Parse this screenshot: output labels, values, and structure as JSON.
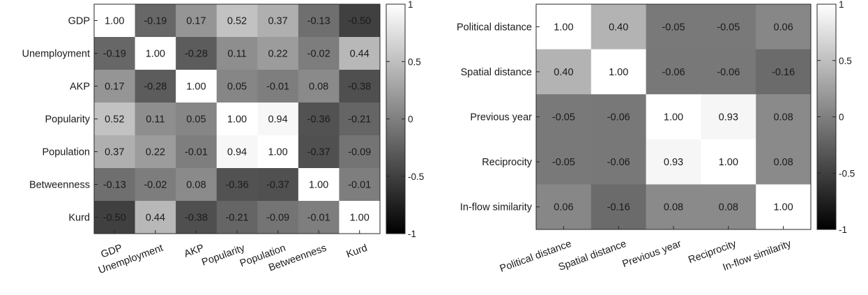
{
  "chart_data": [
    {
      "type": "heatmap",
      "title": "",
      "xlabel": "",
      "ylabel": "",
      "labels": [
        "GDP",
        "Unemployment",
        "AKP",
        "Popularity",
        "Population",
        "Betweenness",
        "Kurd"
      ],
      "value_labels": [
        [
          "1.00",
          "-0.19",
          "0.17",
          "0.52",
          "0.37",
          "-0.13",
          "-0.50"
        ],
        [
          "-0.19",
          "1.00",
          "-0.28",
          "0.11",
          "0.22",
          "-0.02",
          "0.44"
        ],
        [
          "0.17",
          "-0.28",
          "1.00",
          "0.05",
          "-0.01",
          "0.08",
          "-0.38"
        ],
        [
          "0.52",
          "0.11",
          "0.05",
          "1.00",
          "0.94",
          "-0.36",
          "-0.21"
        ],
        [
          "0.37",
          "0.22",
          "-0.01",
          "0.94",
          "1.00",
          "-0.37",
          "-0.09"
        ],
        [
          "-0.13",
          "-0.02",
          "0.08",
          "-0.36",
          "-0.37",
          "1.00",
          "-0.01"
        ],
        [
          "-0.50",
          "0.44",
          "-0.38",
          "-0.21",
          "-0.09",
          "-0.01",
          "1.00"
        ]
      ],
      "colorbar": {
        "range": [
          -1,
          1
        ],
        "ticks": [
          "1",
          "0.5",
          "0",
          "-0.5",
          "-1"
        ],
        "colormap": "gray"
      }
    },
    {
      "type": "heatmap",
      "title": "",
      "xlabel": "",
      "ylabel": "",
      "labels": [
        "Political distance",
        "Spatial distance",
        "Previous year",
        "Reciprocity",
        "In-flow similarity"
      ],
      "value_labels": [
        [
          "1.00",
          "0.40",
          "-0.05",
          "-0.05",
          "0.06"
        ],
        [
          "0.40",
          "1.00",
          "-0.06",
          "-0.06",
          "-0.16"
        ],
        [
          "-0.05",
          "-0.06",
          "1.00",
          "0.93",
          "0.08"
        ],
        [
          "-0.05",
          "-0.06",
          "0.93",
          "1.00",
          "0.08"
        ],
        [
          "0.06",
          "-0.16",
          "0.08",
          "0.08",
          "1.00"
        ]
      ],
      "colorbar": {
        "range": [
          -1,
          1
        ],
        "ticks": [
          "1",
          "0.5",
          "0",
          "-0.5",
          "-1"
        ],
        "colormap": "gray"
      }
    }
  ]
}
